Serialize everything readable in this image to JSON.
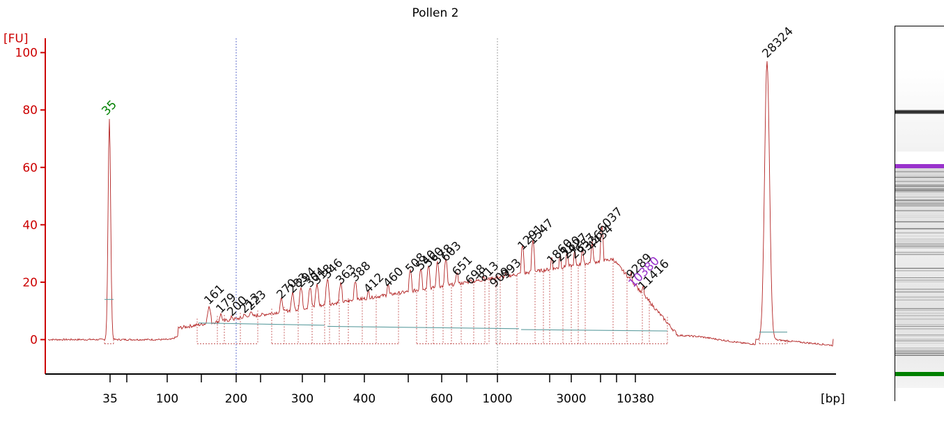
{
  "chart_data": {
    "type": "line",
    "title": "Pollen 2",
    "ylabel": "[FU]",
    "xlabel": "[bp]",
    "ylim": [
      -12,
      105
    ],
    "yticks": [
      0,
      20,
      40,
      60,
      80,
      100
    ],
    "xtick_labels": [
      "35",
      "100",
      "200",
      "300",
      "400",
      "600",
      "1000",
      "3000",
      "10380"
    ],
    "grid": false,
    "colors": {
      "trace": "#b22222",
      "axis": "#cc0000",
      "marker_35": "#008000",
      "marker_10380": "#9932cc",
      "peak_label": "#111111",
      "baseline": "#5f9ea0"
    },
    "markers": [
      {
        "label": "35",
        "value": 77,
        "color": "#008000"
      },
      {
        "label": "10380",
        "value": 17,
        "color": "#9932cc"
      }
    ],
    "peaks": [
      {
        "label": "161",
        "value": 11
      },
      {
        "label": "179",
        "value": 8
      },
      {
        "label": "200",
        "value": 7
      },
      {
        "label": "213",
        "value": 8
      },
      {
        "label": "223",
        "value": 9
      },
      {
        "label": "270",
        "value": 13
      },
      {
        "label": "283",
        "value": 15
      },
      {
        "label": "294",
        "value": 17
      },
      {
        "label": "304",
        "value": 17
      },
      {
        "label": "318",
        "value": 18
      },
      {
        "label": "346",
        "value": 20
      },
      {
        "label": "363",
        "value": 18
      },
      {
        "label": "388",
        "value": 19
      },
      {
        "label": "412",
        "value": 15
      },
      {
        "label": "460",
        "value": 17
      },
      {
        "label": "508",
        "value": 22
      },
      {
        "label": "540",
        "value": 23
      },
      {
        "label": "560",
        "value": 24
      },
      {
        "label": "578",
        "value": 25
      },
      {
        "label": "603",
        "value": 26
      },
      {
        "label": "651",
        "value": 21
      },
      {
        "label": "698",
        "value": 18
      },
      {
        "label": "813",
        "value": 19
      },
      {
        "label": "909",
        "value": 17
      },
      {
        "label": "993",
        "value": 20
      },
      {
        "label": "1291",
        "value": 30
      },
      {
        "label": "1547",
        "value": 32
      },
      {
        "label": "1860",
        "value": 25
      },
      {
        "label": "2180",
        "value": 26
      },
      {
        "label": "2427",
        "value": 27
      },
      {
        "label": "2657",
        "value": 27
      },
      {
        "label": "3336",
        "value": 28
      },
      {
        "label": "4434",
        "value": 30
      },
      {
        "label": "6037",
        "value": 36
      },
      {
        "label": "9289",
        "value": 20
      },
      {
        "label": "11416",
        "value": 16
      },
      {
        "label": "28324",
        "value": 97
      }
    ],
    "baseline_fu": [
      5,
      4,
      3
    ]
  },
  "gel": {
    "colors": {
      "upper_marker": "#9932cc",
      "lower_marker": "#008000",
      "bright_band": "#111111"
    }
  }
}
